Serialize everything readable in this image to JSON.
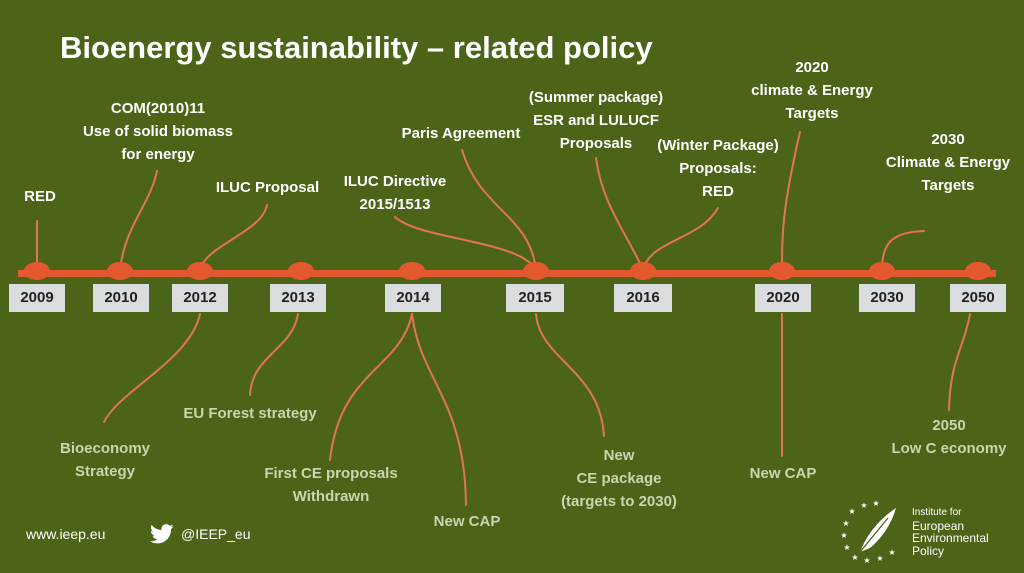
{
  "title": "Bioenergy sustainability – related policy",
  "colors": {
    "background": "#4b6418",
    "timeline": "#e4582f",
    "connector": "#e4744e",
    "year_box": "#d9dde0",
    "below_text": "#c9d6b0"
  },
  "years": [
    "2009",
    "2010",
    "2012",
    "2013",
    "2014",
    "2015",
    "2016",
    "2020",
    "2030",
    "2050"
  ],
  "above_events": [
    {
      "lines": [
        "RED"
      ]
    },
    {
      "lines": [
        "COM(2010)11",
        "Use of solid biomass",
        "for energy"
      ]
    },
    {
      "lines": [
        "ILUC Proposal"
      ]
    },
    {
      "lines": [
        "ILUC Directive",
        "2015/1513"
      ]
    },
    {
      "lines": [
        "Paris Agreement"
      ]
    },
    {
      "lines": [
        "(Summer package)",
        "ESR and LULUCF",
        "Proposals"
      ]
    },
    {
      "lines": [
        "(Winter Package)",
        "Proposals:",
        "RED"
      ]
    },
    {
      "lines": [
        "2020",
        "climate & Energy",
        "Targets"
      ]
    },
    {
      "lines": [
        "2030",
        "Climate & Energy",
        "Targets"
      ]
    }
  ],
  "below_events": [
    {
      "lines": [
        "Bioeconomy",
        "Strategy"
      ]
    },
    {
      "lines": [
        "EU Forest strategy"
      ]
    },
    {
      "lines": [
        "First CE proposals",
        "Withdrawn"
      ]
    },
    {
      "lines": [
        "New CAP"
      ]
    },
    {
      "lines": [
        "New",
        "CE package",
        "(targets to 2030)"
      ]
    },
    {
      "lines": [
        "New CAP"
      ]
    },
    {
      "lines": [
        "2050",
        "Low C economy"
      ]
    }
  ],
  "footer": {
    "website": "www.ieep.eu",
    "twitter": "@IEEP_eu"
  },
  "logo": {
    "lines": [
      "Institute for",
      "European",
      "Environmental",
      "Policy"
    ],
    "icon": "feather-stars-icon"
  }
}
